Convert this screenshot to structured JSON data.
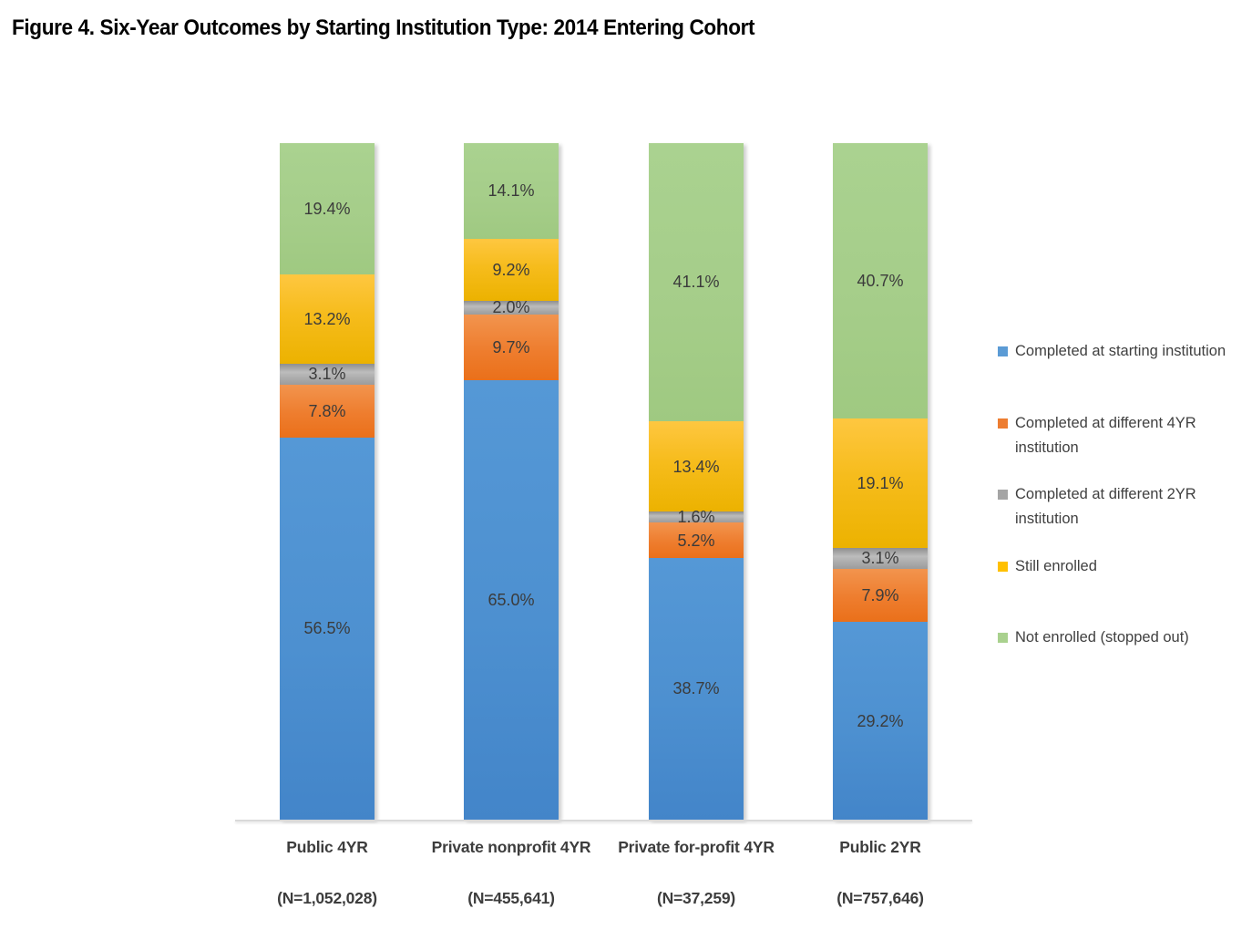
{
  "title": "Figure 4. Six-Year Outcomes by Starting Institution Type: 2014 Entering Cohort",
  "chart_data": {
    "type": "bar",
    "subtype": "stacked-100",
    "orientation": "vertical",
    "title": "Figure 4. Six-Year Outcomes by Starting Institution Type: 2014 Entering Cohort",
    "unit": "%",
    "ylim": [
      0,
      100
    ],
    "grid": false,
    "legend_position": "right",
    "value_label_format": "#0.0%",
    "categories": [
      "Public 4YR",
      "Private nonprofit 4YR",
      "Private for-profit 4YR",
      "Public 2YR"
    ],
    "category_counts": [
      "(N=1,052,028)",
      "(N=455,641)",
      "(N=37,259)",
      "(N=757,646)"
    ],
    "series": [
      {
        "name": "Completed at starting institution",
        "color": "#5B9BD5",
        "values": [
          56.5,
          65.0,
          38.7,
          29.2
        ]
      },
      {
        "name": "Completed at different 4YR institution",
        "color": "#ED7D31",
        "values": [
          7.8,
          9.7,
          5.2,
          7.9
        ]
      },
      {
        "name": "Completed at different 2YR institution",
        "color": "#A5A5A5",
        "values": [
          3.1,
          2.0,
          1.6,
          3.1
        ]
      },
      {
        "name": "Still enrolled",
        "color": "#FFC000",
        "values": [
          13.2,
          9.2,
          13.4,
          19.1
        ]
      },
      {
        "name": "Not enrolled (stopped out)",
        "color": "#A9D18E",
        "values": [
          19.4,
          14.1,
          41.1,
          40.7
        ]
      }
    ]
  }
}
